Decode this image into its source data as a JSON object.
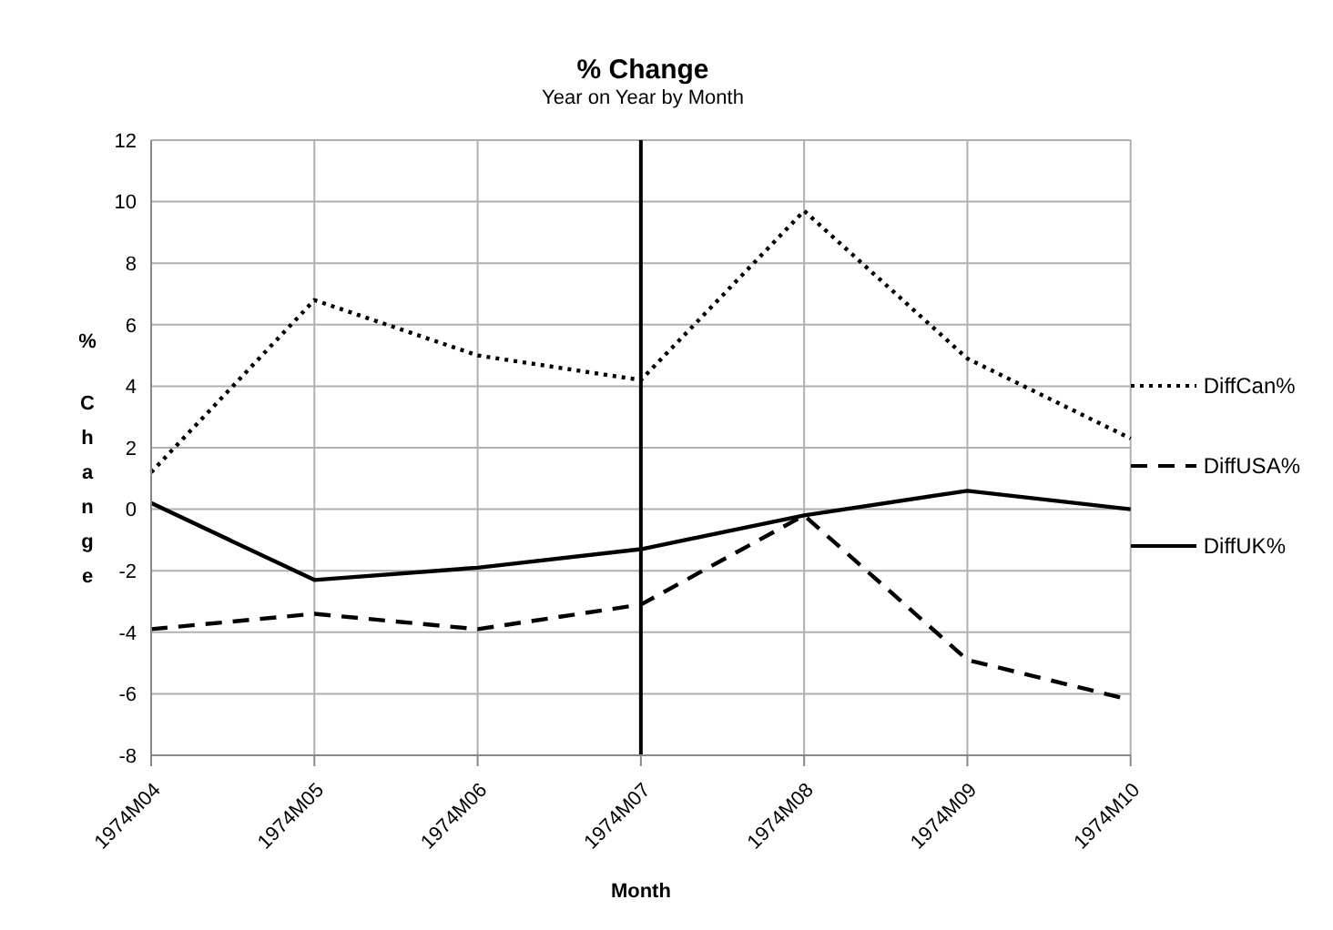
{
  "chart_data": {
    "type": "line",
    "title": "% Change",
    "subtitle": "Year on Year by Month",
    "xlabel": "Month",
    "ylabel": "% Change",
    "categories": [
      "1974M04",
      "1974M05",
      "1974M06",
      "1974M07",
      "1974M08",
      "1974M09",
      "1974M10"
    ],
    "series": [
      {
        "name": "DiffCan%",
        "color": "#000000",
        "line_style": "dotted",
        "values": [
          1.2,
          6.8,
          5.0,
          4.2,
          9.7,
          4.9,
          2.3
        ]
      },
      {
        "name": "DiffUSA%",
        "color": "#000000",
        "line_style": "dashed",
        "values": [
          -3.9,
          -3.4,
          -3.9,
          -3.1,
          -0.2,
          -4.9,
          -6.2
        ]
      },
      {
        "name": "DiffUK%",
        "color": "#000000",
        "line_style": "solid",
        "values": [
          0.2,
          -2.3,
          -1.9,
          -1.3,
          -0.2,
          0.6,
          0.0
        ]
      }
    ],
    "ylim": [
      -8,
      12
    ],
    "yticks": [
      -8,
      -6,
      -4,
      -2,
      0,
      2,
      4,
      6,
      8,
      10,
      12
    ],
    "ref_lines": [
      {
        "axis": "x",
        "value": "1974M07",
        "color": "#000000",
        "line_style": "solid"
      }
    ],
    "grid": true,
    "legend": "right",
    "marker": "none"
  }
}
